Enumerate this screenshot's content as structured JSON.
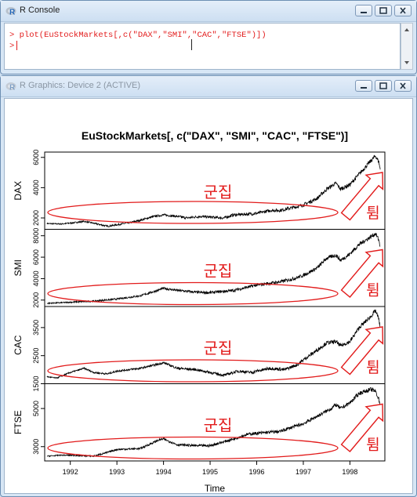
{
  "console_window": {
    "title": "R Console",
    "command_line": "> plot(EuStockMarkets[,c(\"DAX\",\"SMI\",\"CAC\",\"FTSE\")])",
    "prompt": ">"
  },
  "graphics_window": {
    "title": "R Graphics: Device 2 (ACTIVE)"
  },
  "colors": {
    "series_line": "#000000",
    "annotation": "#e21b1b"
  },
  "chart_data": {
    "type": "line",
    "title": "EuStockMarkets[, c(\"DAX\", \"SMI\", \"CAC\", \"FTSE\")]",
    "xlabel": "Time",
    "xlim": [
      1991.45,
      1998.75
    ],
    "x_ticks": [
      1992,
      1993,
      1994,
      1995,
      1996,
      1997,
      1998
    ],
    "x_tick_labels": [
      "1992",
      "1993",
      "1994",
      "1995",
      "1996",
      "1997",
      "1998"
    ],
    "grid": false,
    "panels": [
      {
        "name": "DAX",
        "ylim": [
          1250,
          6350
        ],
        "y_ticks": [
          2000,
          4000,
          6000
        ],
        "y_tick_labels": [
          "2000",
          "4000",
          "6000"
        ],
        "points": [
          [
            1991.5,
            1630
          ],
          [
            1991.8,
            1600
          ],
          [
            1992.0,
            1660
          ],
          [
            1992.3,
            1770
          ],
          [
            1992.5,
            1650
          ],
          [
            1992.8,
            1450
          ],
          [
            1993.0,
            1550
          ],
          [
            1993.3,
            1700
          ],
          [
            1993.5,
            1850
          ],
          [
            1993.8,
            2100
          ],
          [
            1994.0,
            2200
          ],
          [
            1994.3,
            2100
          ],
          [
            1994.5,
            2000
          ],
          [
            1994.8,
            2100
          ],
          [
            1995.0,
            2050
          ],
          [
            1995.3,
            2000
          ],
          [
            1995.5,
            2200
          ],
          [
            1995.8,
            2250
          ],
          [
            1996.0,
            2300
          ],
          [
            1996.3,
            2500
          ],
          [
            1996.5,
            2500
          ],
          [
            1996.8,
            2700
          ],
          [
            1997.0,
            2850
          ],
          [
            1997.3,
            3300
          ],
          [
            1997.5,
            3900
          ],
          [
            1997.7,
            4300
          ],
          [
            1997.8,
            3900
          ],
          [
            1998.0,
            4200
          ],
          [
            1998.2,
            4900
          ],
          [
            1998.4,
            5600
          ],
          [
            1998.55,
            6100
          ],
          [
            1998.62,
            5700
          ],
          [
            1998.65,
            5200
          ]
        ],
        "annotations": {
          "cluster_label": "군집",
          "breakout_label": "튐"
        }
      },
      {
        "name": "SMI",
        "ylim": [
          1400,
          8600
        ],
        "y_ticks": [
          2000,
          4000,
          6000,
          8000
        ],
        "y_tick_labels": [
          "2000",
          "4000",
          "6000",
          "8000"
        ],
        "points": [
          [
            1991.5,
            1700
          ],
          [
            1991.8,
            1750
          ],
          [
            1992.0,
            1800
          ],
          [
            1992.5,
            1900
          ],
          [
            1993.0,
            2100
          ],
          [
            1993.5,
            2400
          ],
          [
            1993.8,
            2800
          ],
          [
            1994.0,
            3100
          ],
          [
            1994.3,
            2900
          ],
          [
            1994.8,
            2700
          ],
          [
            1995.0,
            2700
          ],
          [
            1995.5,
            2900
          ],
          [
            1995.8,
            3200
          ],
          [
            1996.0,
            3400
          ],
          [
            1996.5,
            3700
          ],
          [
            1996.8,
            4000
          ],
          [
            1997.0,
            4300
          ],
          [
            1997.3,
            5000
          ],
          [
            1997.5,
            5900
          ],
          [
            1997.7,
            6200
          ],
          [
            1997.8,
            5700
          ],
          [
            1998.0,
            6300
          ],
          [
            1998.2,
            7200
          ],
          [
            1998.45,
            7900
          ],
          [
            1998.55,
            8200
          ],
          [
            1998.62,
            7600
          ],
          [
            1998.65,
            7000
          ]
        ],
        "annotations": {
          "cluster_label": "군집",
          "breakout_label": "튐"
        }
      },
      {
        "name": "CAC",
        "ylim": [
          1500,
          4250
        ],
        "y_ticks": [
          1500,
          2500,
          3500
        ],
        "y_tick_labels": [
          "1500",
          "2500",
          "3500"
        ],
        "points": [
          [
            1991.5,
            1750
          ],
          [
            1991.7,
            1700
          ],
          [
            1992.0,
            1900
          ],
          [
            1992.3,
            2050
          ],
          [
            1992.5,
            1900
          ],
          [
            1992.8,
            1850
          ],
          [
            1993.0,
            1950
          ],
          [
            1993.5,
            2050
          ],
          [
            1993.9,
            2200
          ],
          [
            1994.0,
            2250
          ],
          [
            1994.3,
            2050
          ],
          [
            1994.7,
            2000
          ],
          [
            1995.0,
            1900
          ],
          [
            1995.3,
            1800
          ],
          [
            1995.6,
            1950
          ],
          [
            1995.9,
            1900
          ],
          [
            1996.0,
            1950
          ],
          [
            1996.3,
            2050
          ],
          [
            1996.6,
            2000
          ],
          [
            1996.9,
            2200
          ],
          [
            1997.0,
            2350
          ],
          [
            1997.3,
            2700
          ],
          [
            1997.5,
            2950
          ],
          [
            1997.7,
            3000
          ],
          [
            1997.8,
            2850
          ],
          [
            1998.0,
            3000
          ],
          [
            1998.2,
            3500
          ],
          [
            1998.45,
            3900
          ],
          [
            1998.55,
            4100
          ],
          [
            1998.62,
            3800
          ],
          [
            1998.65,
            3500
          ]
        ],
        "annotations": {
          "cluster_label": "군집",
          "breakout_label": "튐"
        }
      },
      {
        "name": "FTSE",
        "ylim": [
          2250,
          6300
        ],
        "y_ticks": [
          3000,
          5000
        ],
        "y_tick_labels": [
          "3000",
          "5000"
        ],
        "points": [
          [
            1991.5,
            2500
          ],
          [
            1991.8,
            2550
          ],
          [
            1992.0,
            2550
          ],
          [
            1992.5,
            2500
          ],
          [
            1992.8,
            2700
          ],
          [
            1993.0,
            2850
          ],
          [
            1993.5,
            2900
          ],
          [
            1993.9,
            3350
          ],
          [
            1994.0,
            3400
          ],
          [
            1994.3,
            3100
          ],
          [
            1994.7,
            3050
          ],
          [
            1995.0,
            3050
          ],
          [
            1995.5,
            3400
          ],
          [
            1995.8,
            3650
          ],
          [
            1996.0,
            3700
          ],
          [
            1996.5,
            3800
          ],
          [
            1996.8,
            4050
          ],
          [
            1997.0,
            4200
          ],
          [
            1997.3,
            4600
          ],
          [
            1997.6,
            5000
          ],
          [
            1997.7,
            5200
          ],
          [
            1997.8,
            5000
          ],
          [
            1998.0,
            5300
          ],
          [
            1998.2,
            5800
          ],
          [
            1998.45,
            6000
          ],
          [
            1998.55,
            5900
          ],
          [
            1998.62,
            5500
          ],
          [
            1998.65,
            5200
          ]
        ],
        "annotations": {
          "cluster_label": "군집",
          "breakout_label": "튐"
        }
      }
    ]
  }
}
